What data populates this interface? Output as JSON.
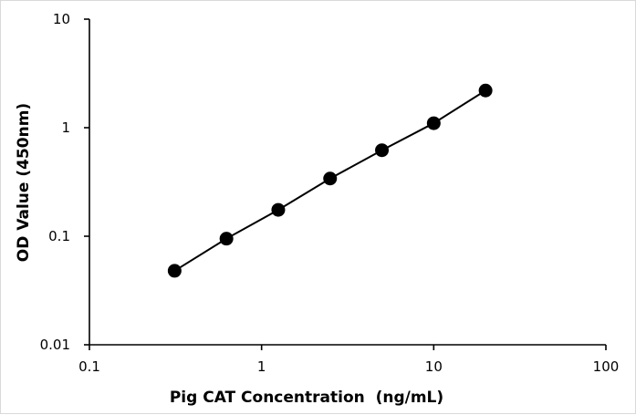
{
  "chart_data": {
    "type": "scatter",
    "xlabel": "Pig CAT Concentration  (ng/mL)",
    "ylabel": "OD Value (450nm)",
    "x_scale": "log",
    "y_scale": "log",
    "xlim": [
      0.1,
      100
    ],
    "ylim": [
      0.01,
      10
    ],
    "x_ticks": [
      0.1,
      1,
      10,
      100
    ],
    "x_tick_labels": [
      "0.1",
      "1",
      "10",
      "100"
    ],
    "y_ticks": [
      0.01,
      0.1,
      1,
      10
    ],
    "y_tick_labels": [
      "0.01",
      "0.1",
      "1",
      "10"
    ],
    "grid": false,
    "legend": "none",
    "series": [
      {
        "x": [
          0.3125,
          0.625,
          1.25,
          2.5,
          5,
          10,
          20
        ],
        "y": [
          0.048,
          0.095,
          0.175,
          0.34,
          0.62,
          1.1,
          2.2
        ],
        "marker": "circle",
        "line": true,
        "color": "#000000"
      }
    ]
  }
}
